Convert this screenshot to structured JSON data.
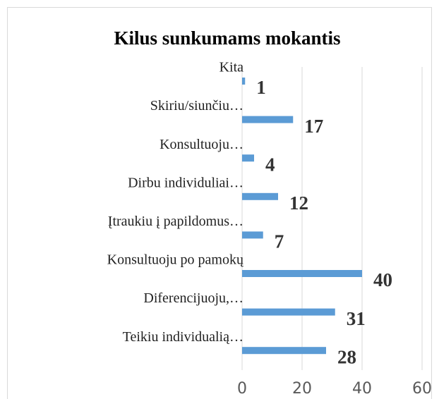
{
  "chart_data": {
    "type": "bar",
    "orientation": "horizontal",
    "title": "Kilus sunkumams mokantis",
    "categories": [
      "Kita",
      "Skiriu/siunčiu…",
      "Konsultuoju…",
      "Dirbu individuliai…",
      "Įtraukiu į papildomus…",
      "Konsultuoju po pamokų",
      "Diferencijuoju,…",
      "Teikiu individualią…"
    ],
    "values": [
      1,
      17,
      4,
      12,
      7,
      40,
      31,
      28
    ],
    "color": "#5b9bd5",
    "xlim": [
      0,
      60
    ],
    "xticks": [
      0,
      20,
      40,
      60
    ],
    "grid": true
  }
}
